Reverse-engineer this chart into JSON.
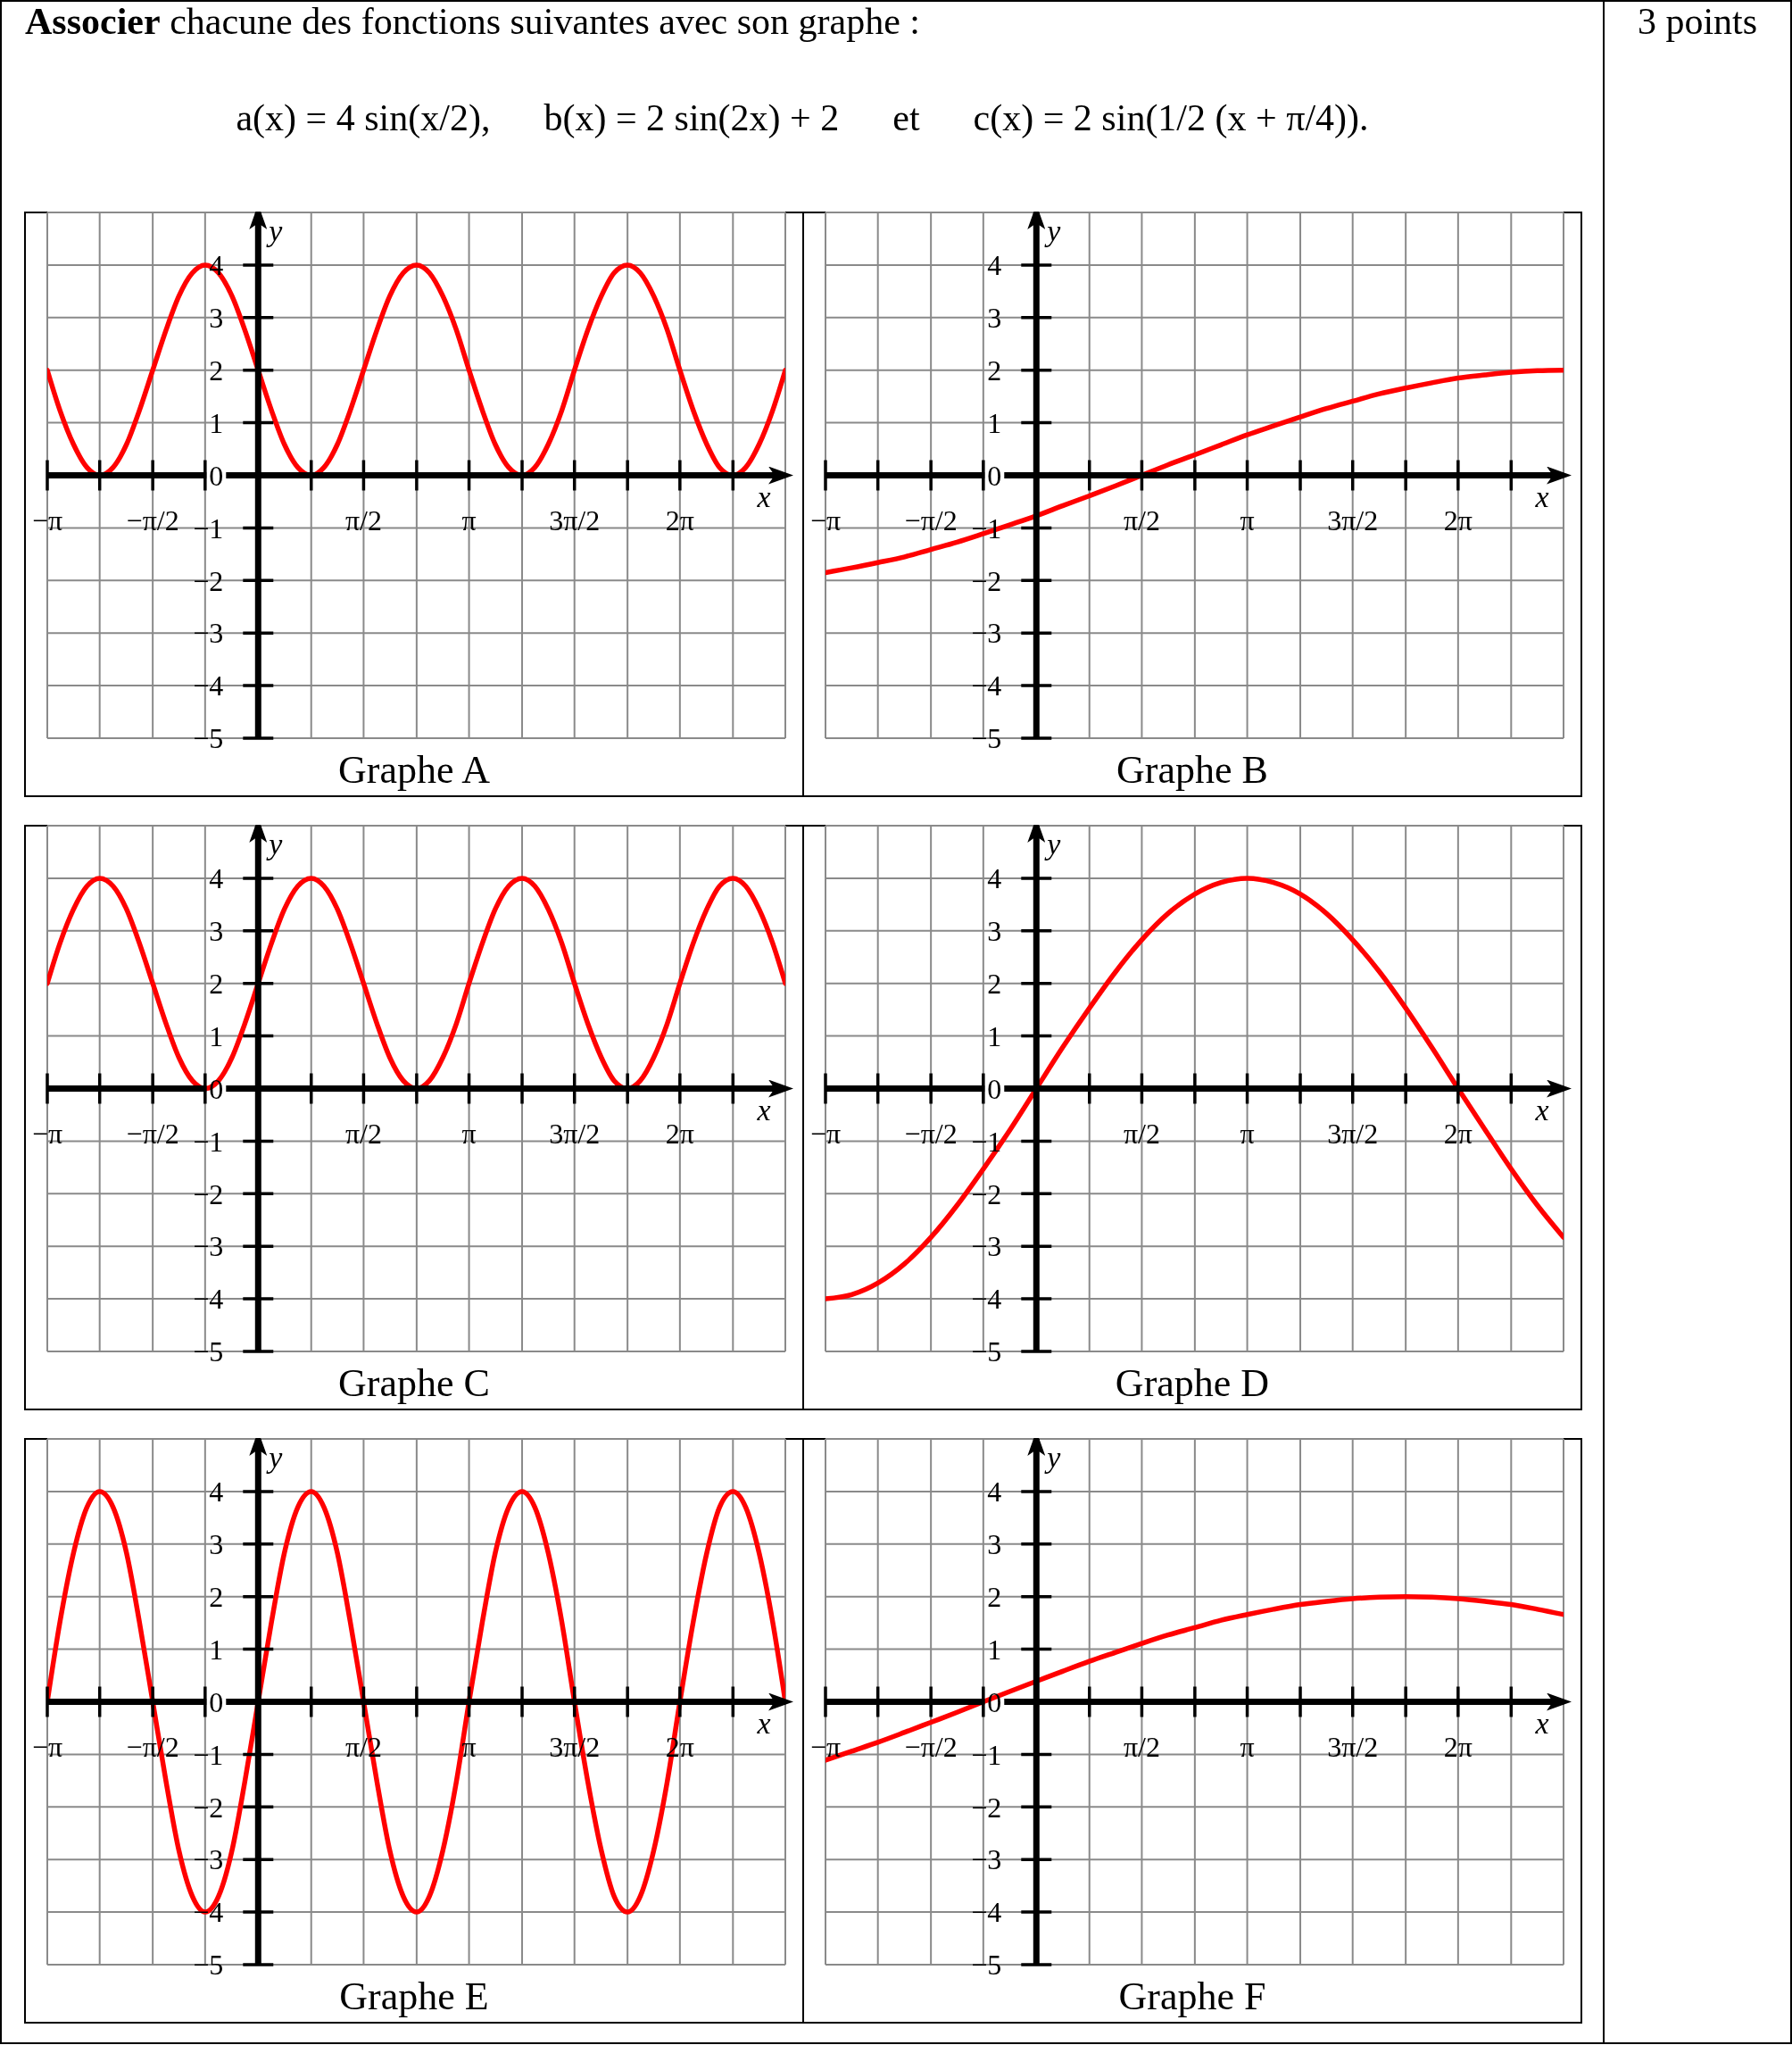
{
  "chart_data": [
    {
      "type": "other",
      "title": "Associer chacune des fonctions suivantes avec son graphe :",
      "annotations": [
        "a(x) = 4 sin(x/2),",
        "b(x) = 2 sin(2x) + 2",
        "et",
        "c(x) = 2 sin(1/2 (x + π/4)).",
        "3 points"
      ]
    },
    {
      "type": "line",
      "title": "Graphe A",
      "xlabel": "x",
      "ylabel": "y",
      "x": [
        -3.14,
        -2.95,
        -2.75,
        -2.55,
        -2.36,
        -2.16,
        -1.96,
        -1.77,
        -1.57,
        -1.37,
        -1.18,
        -0.98,
        -0.79,
        -0.59,
        -0.39,
        -0.2,
        0,
        0.2,
        0.39,
        0.59,
        0.79,
        0.98,
        1.18,
        1.37,
        1.57,
        1.77,
        1.96,
        2.16,
        2.36,
        2.55,
        2.75,
        2.95,
        3.14,
        3.34,
        3.53,
        3.73,
        3.93,
        4.12,
        4.32,
        4.52,
        4.71,
        4.91,
        5.11,
        5.3,
        5.5,
        5.69,
        5.89,
        6.09,
        6.28,
        6.48,
        6.68,
        6.87,
        7.07,
        7.26,
        7.46,
        7.66,
        7.85
      ],
      "values": [
        2,
        1.23,
        0.59,
        0.15,
        0,
        0.15,
        0.59,
        1.23,
        2,
        2.77,
        3.41,
        3.85,
        4,
        3.85,
        3.41,
        2.77,
        2,
        1.23,
        0.59,
        0.15,
        0,
        0.15,
        0.59,
        1.23,
        2,
        2.77,
        3.41,
        3.85,
        4,
        3.85,
        3.41,
        2.77,
        2,
        1.23,
        0.59,
        0.15,
        0,
        0.15,
        0.59,
        1.23,
        2,
        2.77,
        3.41,
        3.85,
        4,
        3.85,
        3.41,
        2.77,
        2,
        1.23,
        0.59,
        0.15,
        0,
        0.15,
        0.59,
        1.23,
        2
      ],
      "color": "#ff0000",
      "xlim": [
        -3.14,
        7.85
      ],
      "ylim": [
        -5,
        5
      ],
      "xticks": [
        {
          "value": -3.14,
          "label": "−π"
        },
        {
          "value": -2.36,
          "label": null
        },
        {
          "value": -1.57,
          "label": "−π/2"
        },
        {
          "value": -0.79,
          "label": null
        },
        {
          "value": 0,
          "label": null
        },
        {
          "value": 0.79,
          "label": null
        },
        {
          "value": 1.57,
          "label": "π/2"
        },
        {
          "value": 2.36,
          "label": null
        },
        {
          "value": 3.14,
          "label": "π"
        },
        {
          "value": 3.93,
          "label": null
        },
        {
          "value": 4.71,
          "label": "3π/2"
        },
        {
          "value": 5.5,
          "label": null
        },
        {
          "value": 6.28,
          "label": "2π"
        },
        {
          "value": 7.07,
          "label": null
        }
      ],
      "yticks": [
        -5,
        -4,
        -3,
        -2,
        -1,
        0,
        1,
        2,
        3,
        4
      ],
      "grid": true
    },
    {
      "type": "line",
      "title": "Graphe B",
      "xlabel": "x",
      "ylabel": "y",
      "x": [
        -3.14,
        -2.75,
        -2.36,
        -1.96,
        -1.57,
        -1.18,
        -0.79,
        -0.39,
        0,
        0.39,
        0.79,
        1.18,
        1.57,
        1.96,
        2.36,
        2.75,
        3.14,
        3.53,
        3.93,
        4.32,
        4.71,
        5.11,
        5.5,
        5.89,
        6.28,
        6.68,
        7.07,
        7.46,
        7.85
      ],
      "values": [
        -1.85,
        -1.76,
        -1.66,
        -1.55,
        -1.41,
        -1.27,
        -1.11,
        -0.94,
        -0.77,
        -0.58,
        -0.39,
        -0.2,
        0,
        0.2,
        0.39,
        0.58,
        0.77,
        0.94,
        1.11,
        1.27,
        1.41,
        1.55,
        1.66,
        1.76,
        1.85,
        1.91,
        1.96,
        1.99,
        2
      ],
      "color": "#ff0000",
      "xlim": [
        -3.14,
        7.85
      ],
      "ylim": [
        -5,
        5
      ],
      "xticks": [
        {
          "value": -3.14,
          "label": "−π"
        },
        {
          "value": -2.36,
          "label": null
        },
        {
          "value": -1.57,
          "label": "−π/2"
        },
        {
          "value": -0.79,
          "label": null
        },
        {
          "value": 0,
          "label": null
        },
        {
          "value": 0.79,
          "label": null
        },
        {
          "value": 1.57,
          "label": "π/2"
        },
        {
          "value": 2.36,
          "label": null
        },
        {
          "value": 3.14,
          "label": "π"
        },
        {
          "value": 3.93,
          "label": null
        },
        {
          "value": 4.71,
          "label": "3π/2"
        },
        {
          "value": 5.5,
          "label": null
        },
        {
          "value": 6.28,
          "label": "2π"
        },
        {
          "value": 7.07,
          "label": null
        }
      ],
      "yticks": [
        -5,
        -4,
        -3,
        -2,
        -1,
        0,
        1,
        2,
        3,
        4
      ],
      "grid": true
    },
    {
      "type": "line",
      "title": "Graphe C",
      "xlabel": "x",
      "ylabel": "y",
      "x": [
        -3.14,
        -2.95,
        -2.75,
        -2.55,
        -2.36,
        -2.16,
        -1.96,
        -1.77,
        -1.57,
        -1.37,
        -1.18,
        -0.98,
        -0.79,
        -0.59,
        -0.39,
        -0.2,
        0,
        0.2,
        0.39,
        0.59,
        0.79,
        0.98,
        1.18,
        1.37,
        1.57,
        1.77,
        1.96,
        2.16,
        2.36,
        2.55,
        2.75,
        2.95,
        3.14,
        3.34,
        3.53,
        3.73,
        3.93,
        4.12,
        4.32,
        4.52,
        4.71,
        4.91,
        5.11,
        5.3,
        5.5,
        5.69,
        5.89,
        6.09,
        6.28,
        6.48,
        6.68,
        6.87,
        7.07,
        7.26,
        7.46,
        7.66,
        7.85
      ],
      "values": [
        2,
        2.77,
        3.41,
        3.85,
        4,
        3.85,
        3.41,
        2.77,
        2,
        1.23,
        0.59,
        0.15,
        0,
        0.15,
        0.59,
        1.23,
        2,
        2.77,
        3.41,
        3.85,
        4,
        3.85,
        3.41,
        2.77,
        2,
        1.23,
        0.59,
        0.15,
        0,
        0.15,
        0.59,
        1.23,
        2,
        2.77,
        3.41,
        3.85,
        4,
        3.85,
        3.41,
        2.77,
        2,
        1.23,
        0.59,
        0.15,
        0,
        0.15,
        0.59,
        1.23,
        2,
        2.77,
        3.41,
        3.85,
        4,
        3.85,
        3.41,
        2.77,
        2
      ],
      "color": "#ff0000",
      "xlim": [
        -3.14,
        7.85
      ],
      "ylim": [
        -5,
        5
      ],
      "xticks": [
        {
          "value": -3.14,
          "label": "−π"
        },
        {
          "value": -2.36,
          "label": null
        },
        {
          "value": -1.57,
          "label": "−π/2"
        },
        {
          "value": -0.79,
          "label": null
        },
        {
          "value": 0,
          "label": null
        },
        {
          "value": 0.79,
          "label": null
        },
        {
          "value": 1.57,
          "label": "π/2"
        },
        {
          "value": 2.36,
          "label": null
        },
        {
          "value": 3.14,
          "label": "π"
        },
        {
          "value": 3.93,
          "label": null
        },
        {
          "value": 4.71,
          "label": "3π/2"
        },
        {
          "value": 5.5,
          "label": null
        },
        {
          "value": 6.28,
          "label": "2π"
        },
        {
          "value": 7.07,
          "label": null
        }
      ],
      "yticks": [
        -5,
        -4,
        -3,
        -2,
        -1,
        0,
        1,
        2,
        3,
        4
      ],
      "grid": true
    },
    {
      "type": "line",
      "title": "Graphe D",
      "xlabel": "x",
      "ylabel": "y",
      "x": [
        -3.14,
        -2.75,
        -2.36,
        -1.96,
        -1.57,
        -1.18,
        -0.79,
        -0.39,
        0,
        0.39,
        0.79,
        1.18,
        1.57,
        1.96,
        2.36,
        2.75,
        3.14,
        3.53,
        3.93,
        4.32,
        4.71,
        5.11,
        5.5,
        5.89,
        6.28,
        6.68,
        7.07,
        7.46,
        7.85
      ],
      "values": [
        -4,
        -3.92,
        -3.7,
        -3.33,
        -2.83,
        -2.22,
        -1.53,
        -0.78,
        0,
        0.78,
        1.53,
        2.22,
        2.83,
        3.33,
        3.7,
        3.92,
        4,
        3.92,
        3.7,
        3.33,
        2.83,
        2.22,
        1.53,
        0.78,
        0,
        -0.78,
        -1.53,
        -2.22,
        -2.83
      ],
      "color": "#ff0000",
      "xlim": [
        -3.14,
        7.85
      ],
      "ylim": [
        -5,
        5
      ],
      "xticks": [
        {
          "value": -3.14,
          "label": "−π"
        },
        {
          "value": -2.36,
          "label": null
        },
        {
          "value": -1.57,
          "label": "−π/2"
        },
        {
          "value": -0.79,
          "label": null
        },
        {
          "value": 0,
          "label": null
        },
        {
          "value": 0.79,
          "label": null
        },
        {
          "value": 1.57,
          "label": "π/2"
        },
        {
          "value": 2.36,
          "label": null
        },
        {
          "value": 3.14,
          "label": "π"
        },
        {
          "value": 3.93,
          "label": null
        },
        {
          "value": 4.71,
          "label": "3π/2"
        },
        {
          "value": 5.5,
          "label": null
        },
        {
          "value": 6.28,
          "label": "2π"
        },
        {
          "value": 7.07,
          "label": null
        }
      ],
      "yticks": [
        -5,
        -4,
        -3,
        -2,
        -1,
        0,
        1,
        2,
        3,
        4
      ],
      "grid": true
    },
    {
      "type": "line",
      "title": "Graphe E",
      "xlabel": "x",
      "ylabel": "y",
      "x": [
        -3.14,
        -2.95,
        -2.75,
        -2.55,
        -2.36,
        -2.16,
        -1.96,
        -1.77,
        -1.57,
        -1.37,
        -1.18,
        -0.98,
        -0.79,
        -0.59,
        -0.39,
        -0.2,
        0,
        0.2,
        0.39,
        0.59,
        0.79,
        0.98,
        1.18,
        1.37,
        1.57,
        1.77,
        1.96,
        2.16,
        2.36,
        2.55,
        2.75,
        2.95,
        3.14,
        3.34,
        3.53,
        3.73,
        3.93,
        4.12,
        4.32,
        4.52,
        4.71,
        4.91,
        5.11,
        5.3,
        5.5,
        5.69,
        5.89,
        6.09,
        6.28,
        6.48,
        6.68,
        6.87,
        7.07,
        7.26,
        7.46,
        7.66,
        7.85
      ],
      "values": [
        0,
        1.53,
        2.83,
        3.7,
        4,
        3.7,
        2.83,
        1.53,
        0,
        -1.53,
        -2.83,
        -3.7,
        -4,
        -3.7,
        -2.83,
        -1.53,
        0,
        1.53,
        2.83,
        3.7,
        4,
        3.7,
        2.83,
        1.53,
        0,
        -1.53,
        -2.83,
        -3.7,
        -4,
        -3.7,
        -2.83,
        -1.53,
        0,
        1.53,
        2.83,
        3.7,
        4,
        3.7,
        2.83,
        1.53,
        0,
        -1.53,
        -2.83,
        -3.7,
        -4,
        -3.7,
        -2.83,
        -1.53,
        0,
        1.53,
        2.83,
        3.7,
        4,
        3.7,
        2.83,
        1.53,
        0
      ],
      "color": "#ff0000",
      "xlim": [
        -3.14,
        7.85
      ],
      "ylim": [
        -5,
        5
      ],
      "xticks": [
        {
          "value": -3.14,
          "label": "−π"
        },
        {
          "value": -2.36,
          "label": null
        },
        {
          "value": -1.57,
          "label": "−π/2"
        },
        {
          "value": -0.79,
          "label": null
        },
        {
          "value": 0,
          "label": null
        },
        {
          "value": 0.79,
          "label": null
        },
        {
          "value": 1.57,
          "label": "π/2"
        },
        {
          "value": 2.36,
          "label": null
        },
        {
          "value": 3.14,
          "label": "π"
        },
        {
          "value": 3.93,
          "label": null
        },
        {
          "value": 4.71,
          "label": "3π/2"
        },
        {
          "value": 5.5,
          "label": null
        },
        {
          "value": 6.28,
          "label": "2π"
        },
        {
          "value": 7.07,
          "label": null
        }
      ],
      "yticks": [
        -5,
        -4,
        -3,
        -2,
        -1,
        0,
        1,
        2,
        3,
        4
      ],
      "grid": true
    },
    {
      "type": "line",
      "title": "Graphe F",
      "xlabel": "x",
      "ylabel": "y",
      "x": [
        -3.14,
        -2.75,
        -2.36,
        -1.96,
        -1.57,
        -1.18,
        -0.79,
        -0.39,
        0,
        0.39,
        0.79,
        1.18,
        1.57,
        1.96,
        2.36,
        2.75,
        3.14,
        3.53,
        3.93,
        4.32,
        4.71,
        5.11,
        5.5,
        5.89,
        6.28,
        6.68,
        7.07,
        7.46,
        7.85
      ],
      "values": [
        -1.11,
        -0.94,
        -0.77,
        -0.58,
        -0.39,
        -0.2,
        0,
        0.2,
        0.39,
        0.58,
        0.77,
        0.94,
        1.11,
        1.27,
        1.41,
        1.55,
        1.66,
        1.76,
        1.85,
        1.91,
        1.96,
        1.99,
        2,
        1.99,
        1.96,
        1.91,
        1.85,
        1.76,
        1.66
      ],
      "color": "#ff0000",
      "xlim": [
        -3.14,
        7.85
      ],
      "ylim": [
        -5,
        5
      ],
      "xticks": [
        {
          "value": -3.14,
          "label": "−π"
        },
        {
          "value": -2.36,
          "label": null
        },
        {
          "value": -1.57,
          "label": "−π/2"
        },
        {
          "value": -0.79,
          "label": null
        },
        {
          "value": 0,
          "label": null
        },
        {
          "value": 0.79,
          "label": null
        },
        {
          "value": 1.57,
          "label": "π/2"
        },
        {
          "value": 2.36,
          "label": null
        },
        {
          "value": 3.14,
          "label": "π"
        },
        {
          "value": 3.93,
          "label": null
        },
        {
          "value": 4.71,
          "label": "3π/2"
        },
        {
          "value": 5.5,
          "label": null
        },
        {
          "value": 6.28,
          "label": "2π"
        },
        {
          "value": 7.07,
          "label": null
        }
      ],
      "yticks": [
        -5,
        -4,
        -3,
        -2,
        -1,
        0,
        1,
        2,
        3,
        4
      ],
      "grid": true
    }
  ]
}
